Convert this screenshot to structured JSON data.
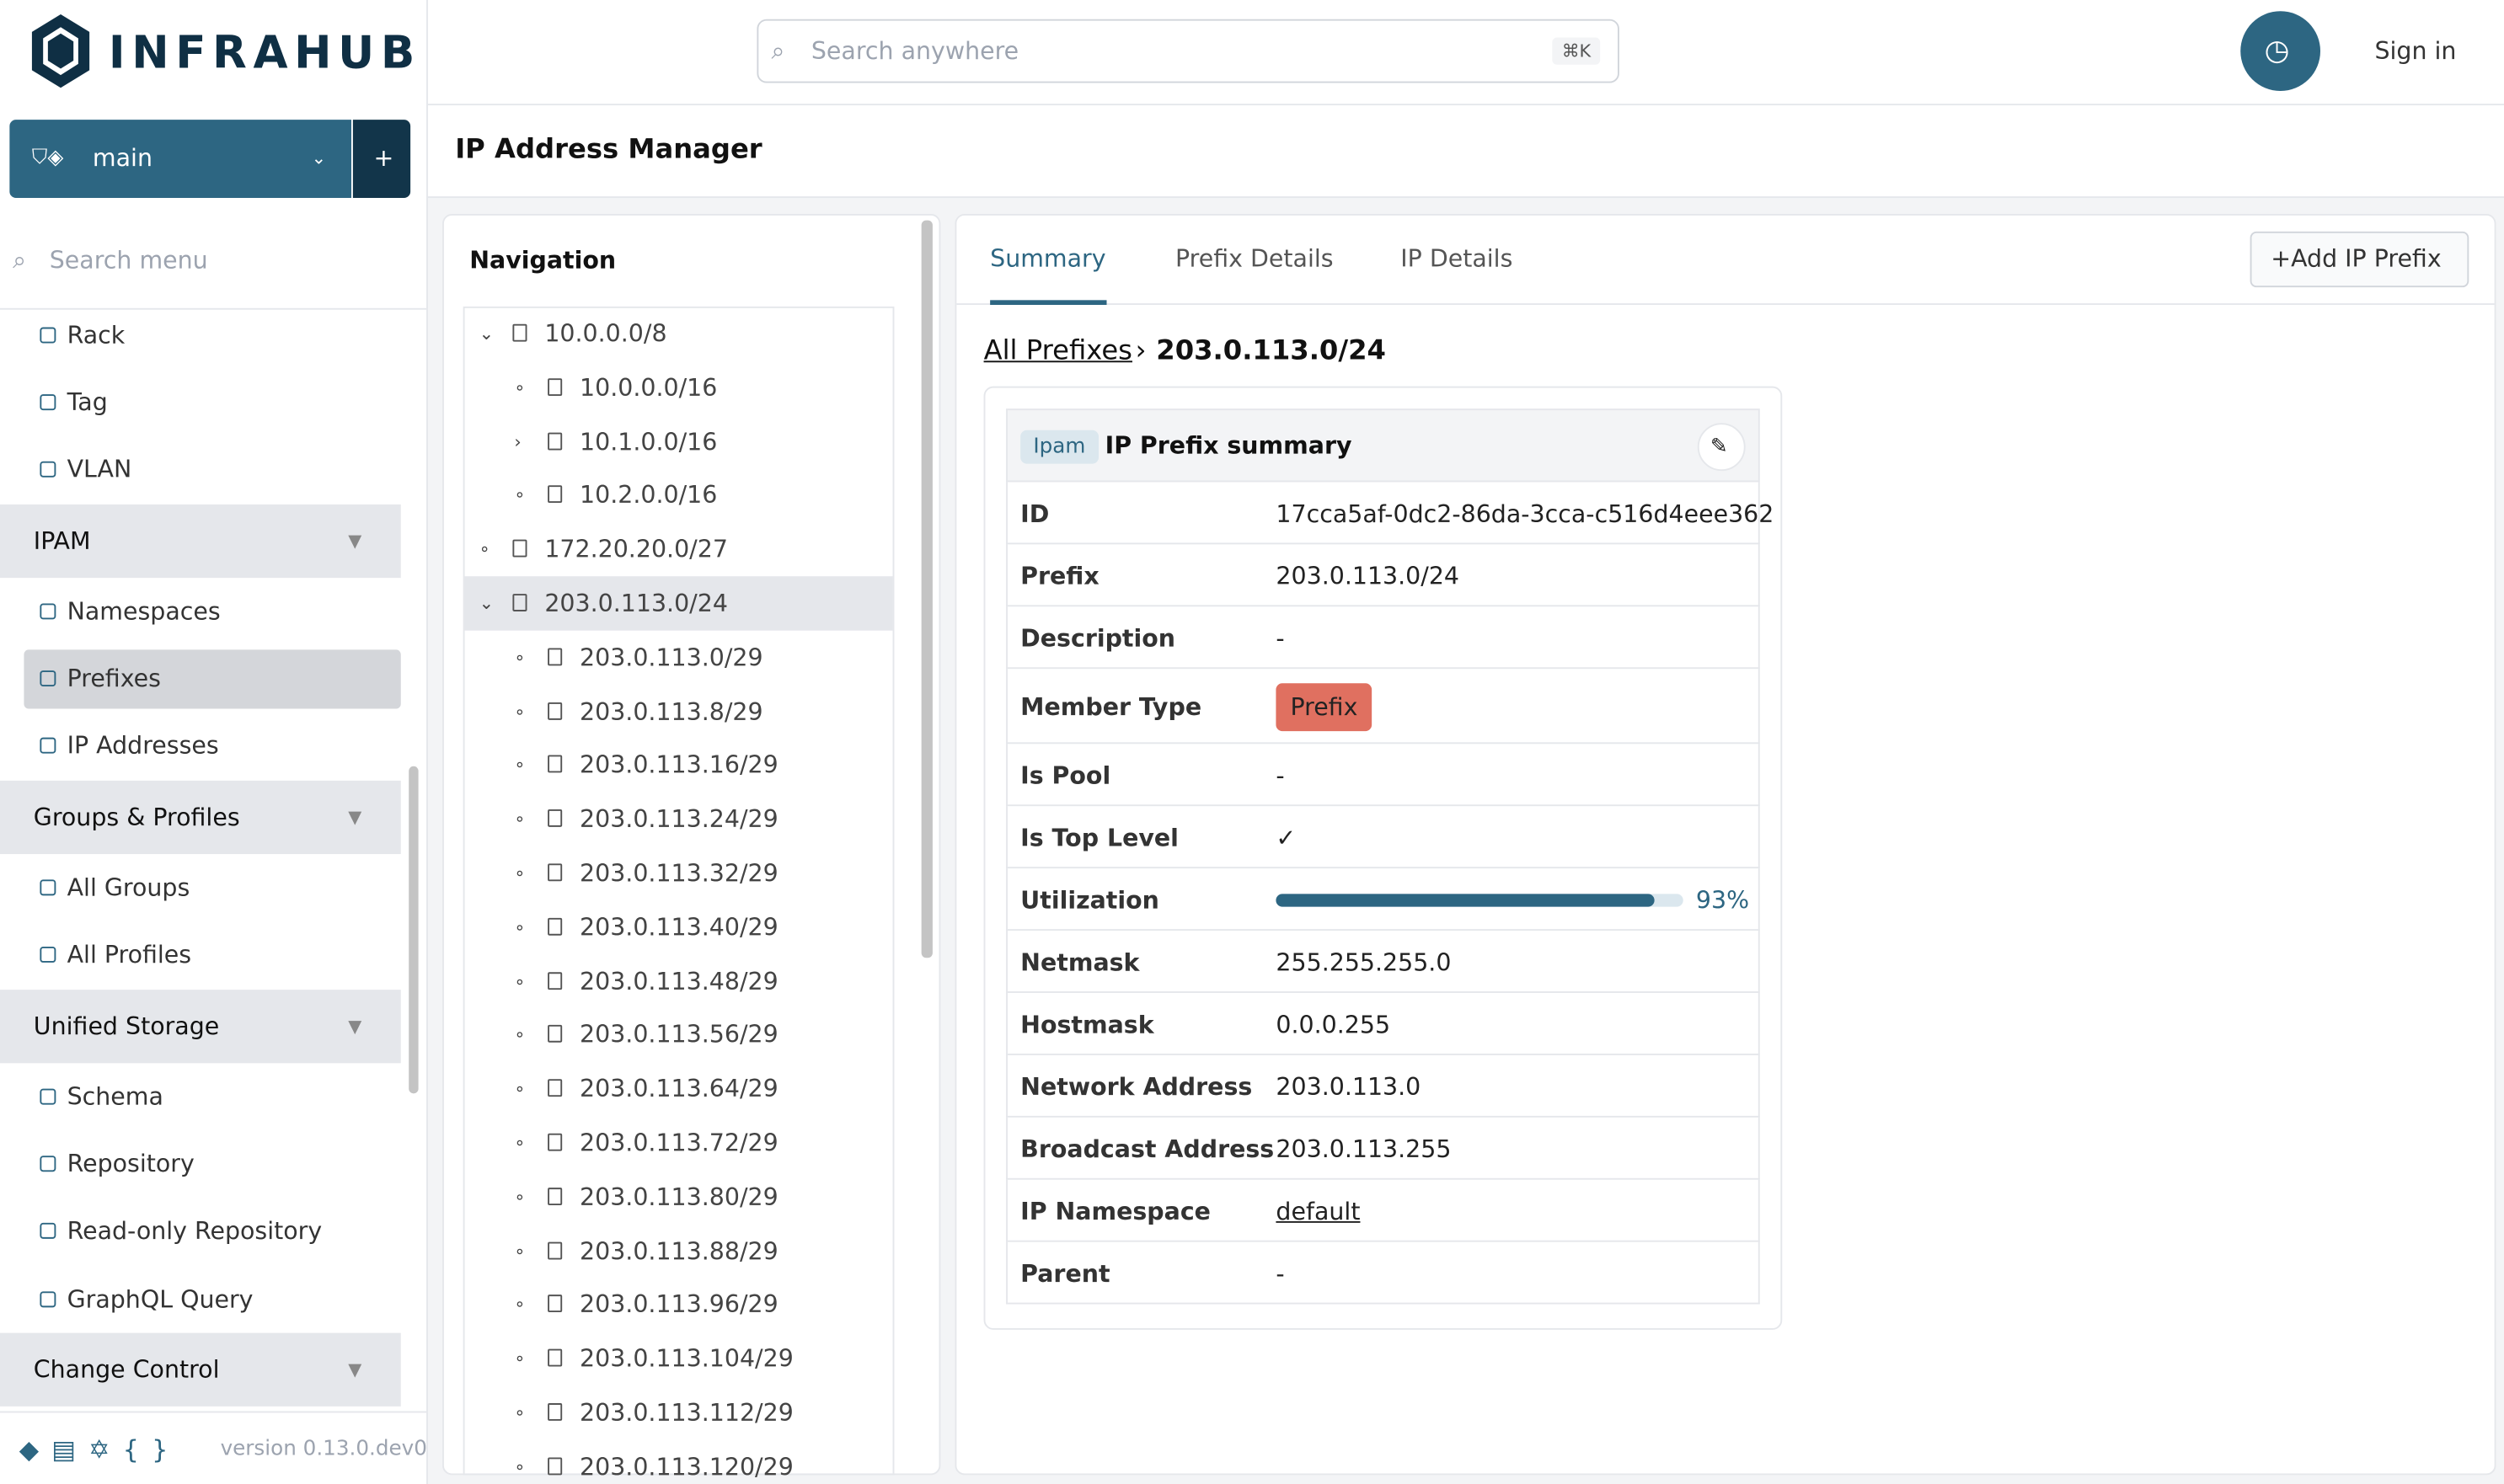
{
  "header": {
    "logo": "INFRAHUB",
    "search_placeholder": "Search anywhere",
    "search_shortcut": "⌘K",
    "sign_in": "Sign in"
  },
  "branch": {
    "name": "main",
    "add": "+"
  },
  "sidebar": {
    "search_placeholder": "Search menu",
    "version": "version 0.13.0.dev0",
    "menu": [
      {
        "label": "Rack",
        "kind": "item"
      },
      {
        "label": "Tag",
        "kind": "item"
      },
      {
        "label": "VLAN",
        "kind": "item"
      },
      {
        "label": "IPAM",
        "kind": "section"
      },
      {
        "label": "Namespaces",
        "kind": "item"
      },
      {
        "label": "Prefixes",
        "kind": "item",
        "active": true
      },
      {
        "label": "IP Addresses",
        "kind": "item"
      },
      {
        "label": "Groups & Profiles",
        "kind": "section"
      },
      {
        "label": "All Groups",
        "kind": "item"
      },
      {
        "label": "All Profiles",
        "kind": "item"
      },
      {
        "label": "Unified Storage",
        "kind": "section"
      },
      {
        "label": "Schema",
        "kind": "item"
      },
      {
        "label": "Repository",
        "kind": "item"
      },
      {
        "label": "Read-only Repository",
        "kind": "item"
      },
      {
        "label": "GraphQL Query",
        "kind": "item"
      },
      {
        "label": "Change Control",
        "kind": "section"
      }
    ]
  },
  "page": {
    "title": "IP Address Manager"
  },
  "navigation": {
    "title": "Navigation",
    "tree": [
      {
        "label": "10.0.0.0/8",
        "depth": 0,
        "toggle": "open"
      },
      {
        "label": "10.0.0.0/16",
        "depth": 1,
        "toggle": "leaf"
      },
      {
        "label": "10.1.0.0/16",
        "depth": 1,
        "toggle": "closed"
      },
      {
        "label": "10.2.0.0/16",
        "depth": 1,
        "toggle": "leaf"
      },
      {
        "label": "172.20.20.0/27",
        "depth": 0,
        "toggle": "leaf"
      },
      {
        "label": "203.0.113.0/24",
        "depth": 0,
        "toggle": "open",
        "selected": true
      },
      {
        "label": "203.0.113.0/29",
        "depth": 1,
        "toggle": "leaf"
      },
      {
        "label": "203.0.113.8/29",
        "depth": 1,
        "toggle": "leaf"
      },
      {
        "label": "203.0.113.16/29",
        "depth": 1,
        "toggle": "leaf"
      },
      {
        "label": "203.0.113.24/29",
        "depth": 1,
        "toggle": "leaf"
      },
      {
        "label": "203.0.113.32/29",
        "depth": 1,
        "toggle": "leaf"
      },
      {
        "label": "203.0.113.40/29",
        "depth": 1,
        "toggle": "leaf"
      },
      {
        "label": "203.0.113.48/29",
        "depth": 1,
        "toggle": "leaf"
      },
      {
        "label": "203.0.113.56/29",
        "depth": 1,
        "toggle": "leaf"
      },
      {
        "label": "203.0.113.64/29",
        "depth": 1,
        "toggle": "leaf"
      },
      {
        "label": "203.0.113.72/29",
        "depth": 1,
        "toggle": "leaf"
      },
      {
        "label": "203.0.113.80/29",
        "depth": 1,
        "toggle": "leaf"
      },
      {
        "label": "203.0.113.88/29",
        "depth": 1,
        "toggle": "leaf"
      },
      {
        "label": "203.0.113.96/29",
        "depth": 1,
        "toggle": "leaf"
      },
      {
        "label": "203.0.113.104/29",
        "depth": 1,
        "toggle": "leaf"
      },
      {
        "label": "203.0.113.112/29",
        "depth": 1,
        "toggle": "leaf"
      },
      {
        "label": "203.0.113.120/29",
        "depth": 1,
        "toggle": "leaf"
      }
    ]
  },
  "tabs": [
    "Summary",
    "Prefix Details",
    "IP Details"
  ],
  "add_button": "+Add IP Prefix",
  "breadcrumb": {
    "root": "All Prefixes",
    "current": "203.0.113.0/24"
  },
  "card": {
    "badge": "Ipam",
    "title": "IP Prefix summary",
    "rows": [
      {
        "label": "ID",
        "value": "17cca5af-0dc2-86da-3cca-c516d4eee362"
      },
      {
        "label": "Prefix",
        "value": "203.0.113.0/24"
      },
      {
        "label": "Description",
        "value": "-"
      },
      {
        "label": "Member Type",
        "value": "Prefix",
        "style": "badge"
      },
      {
        "label": "Is Pool",
        "value": "-"
      },
      {
        "label": "Is Top Level",
        "value": "✓"
      },
      {
        "label": "Utilization",
        "value": 93,
        "value_label": "93%",
        "style": "progress"
      },
      {
        "label": "Netmask",
        "value": "255.255.255.0"
      },
      {
        "label": "Hostmask",
        "value": "0.0.0.255"
      },
      {
        "label": "Network Address",
        "value": "203.0.113.0"
      },
      {
        "label": "Broadcast Address",
        "value": "203.0.113.255"
      },
      {
        "label": "IP Namespace",
        "value": "default",
        "style": "link"
      },
      {
        "label": "Parent",
        "value": "-"
      }
    ]
  }
}
